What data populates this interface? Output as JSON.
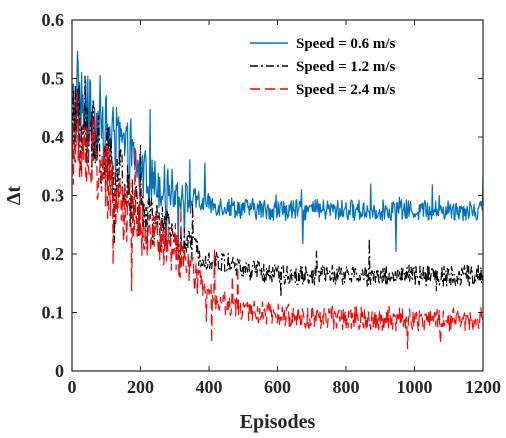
{
  "chart_data": {
    "type": "line",
    "xlabel": "Episodes",
    "ylabel": "Δt",
    "xlim": [
      0,
      1200
    ],
    "ylim": [
      0,
      0.6
    ],
    "xticks": [
      "0",
      "200",
      "400",
      "600",
      "800",
      "1000",
      "1200"
    ],
    "yticks": [
      "0",
      "0.1",
      "0.2",
      "0.3",
      "0.4",
      "0.5",
      "0.6"
    ],
    "legend_position": "top-right",
    "series": [
      {
        "name": "Speed = 0.6 m/s",
        "color": "#0072BD",
        "dash": "solid",
        "noise": 0.018,
        "spike_chance": 0.06,
        "x": [
          0,
          20,
          50,
          100,
          150,
          200,
          250,
          300,
          350,
          400,
          500,
          600,
          800,
          1000,
          1200
        ],
        "values": [
          0.44,
          0.46,
          0.43,
          0.41,
          0.38,
          0.34,
          0.32,
          0.31,
          0.29,
          0.285,
          0.278,
          0.275,
          0.275,
          0.275,
          0.275
        ]
      },
      {
        "name": "Speed = 1.2 m/s",
        "color": "#000000",
        "dash": "8,3,2,3",
        "noise": 0.018,
        "spike_chance": 0.05,
        "x": [
          0,
          20,
          50,
          100,
          150,
          200,
          250,
          300,
          350,
          400,
          500,
          600,
          800,
          1000,
          1200
        ],
        "values": [
          0.41,
          0.42,
          0.39,
          0.36,
          0.31,
          0.27,
          0.25,
          0.23,
          0.21,
          0.19,
          0.175,
          0.165,
          0.163,
          0.163,
          0.163
        ]
      },
      {
        "name": "Speed = 2.4 m/s",
        "color": "#FF0000",
        "dash": "10,5",
        "noise": 0.02,
        "spike_chance": 0.05,
        "x": [
          0,
          20,
          50,
          100,
          150,
          200,
          250,
          300,
          350,
          400,
          450,
          500,
          600,
          800,
          1000,
          1200
        ],
        "values": [
          0.39,
          0.4,
          0.37,
          0.32,
          0.28,
          0.25,
          0.23,
          0.2,
          0.17,
          0.13,
          0.115,
          0.105,
          0.095,
          0.09,
          0.088,
          0.088
        ]
      }
    ]
  }
}
